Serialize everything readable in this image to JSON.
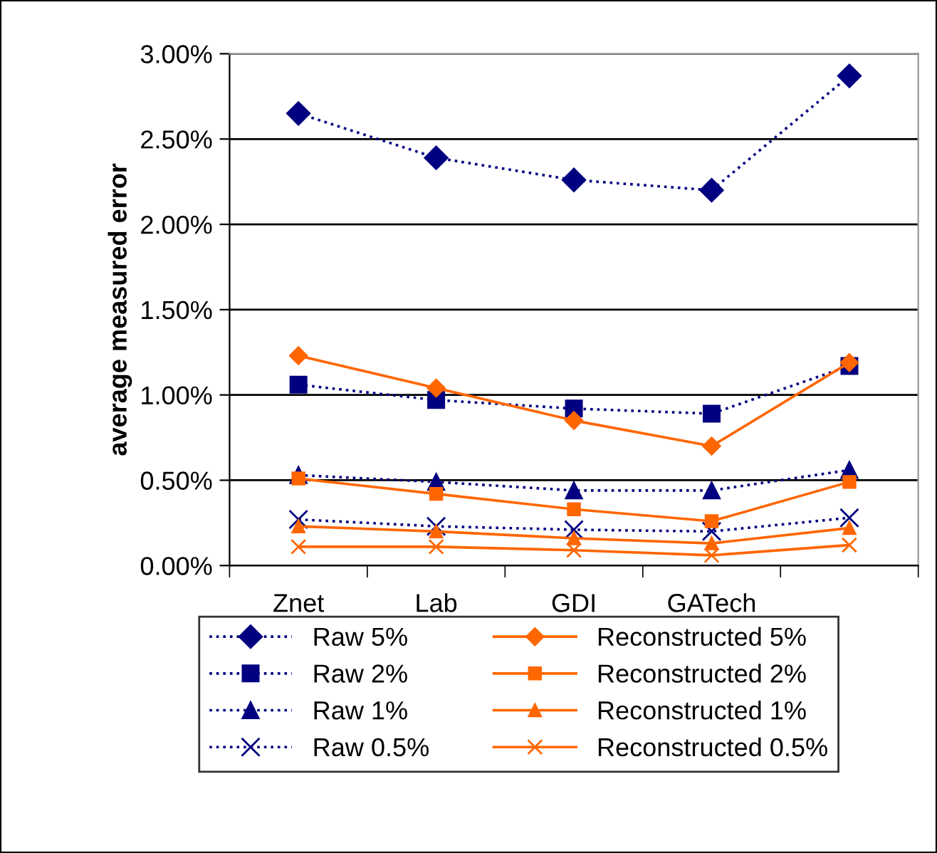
{
  "chart_data": {
    "type": "line",
    "ylabel": "average measured error",
    "categories": [
      "Znet",
      "Lab",
      "GDI",
      "GATech",
      null
    ],
    "ylim": [
      0,
      3
    ],
    "yticks": [
      {
        "value": 0,
        "label": "0.00%"
      },
      {
        "value": 0.5,
        "label": "0.50%"
      },
      {
        "value": 1,
        "label": "1.00%"
      },
      {
        "value": 1.5,
        "label": "1.50%"
      },
      {
        "value": 2,
        "label": "2.00%"
      },
      {
        "value": 2.5,
        "label": "2.50%"
      },
      {
        "value": 3,
        "label": "3.00%"
      }
    ],
    "grid": "y",
    "legend": "bottom",
    "series": [
      {
        "name": "Raw 5%",
        "color": "#000080",
        "marker": "diamond",
        "line_style": "dotted",
        "values": [
          2.65,
          2.39,
          2.26,
          2.2,
          2.87
        ]
      },
      {
        "name": "Raw 2%",
        "color": "#000080",
        "marker": "square",
        "line_style": "dotted",
        "values": [
          1.06,
          0.97,
          0.92,
          0.89,
          1.17
        ]
      },
      {
        "name": "Raw 1%",
        "color": "#000080",
        "marker": "triangle",
        "line_style": "dotted",
        "values": [
          0.53,
          0.49,
          0.44,
          0.44,
          0.56
        ]
      },
      {
        "name": "Raw 0.5%",
        "color": "#000080",
        "marker": "cross",
        "line_style": "dotted",
        "values": [
          0.27,
          0.23,
          0.21,
          0.2,
          0.28
        ]
      },
      {
        "name": "Reconstructed 5%",
        "color": "#ff6600",
        "marker": "diamond",
        "line_style": "solid",
        "values": [
          1.23,
          1.04,
          0.85,
          0.7,
          1.19
        ]
      },
      {
        "name": "Reconstructed 2%",
        "color": "#ff6600",
        "marker": "square",
        "line_style": "solid",
        "values": [
          0.51,
          0.42,
          0.33,
          0.26,
          0.49
        ]
      },
      {
        "name": "Reconstructed 1%",
        "color": "#ff6600",
        "marker": "triangle",
        "line_style": "solid",
        "values": [
          0.23,
          0.2,
          0.16,
          0.13,
          0.22
        ]
      },
      {
        "name": "Reconstructed 0.5%",
        "color": "#ff6600",
        "marker": "cross",
        "line_style": "solid",
        "values": [
          0.11,
          0.11,
          0.09,
          0.06,
          0.12
        ]
      }
    ]
  }
}
